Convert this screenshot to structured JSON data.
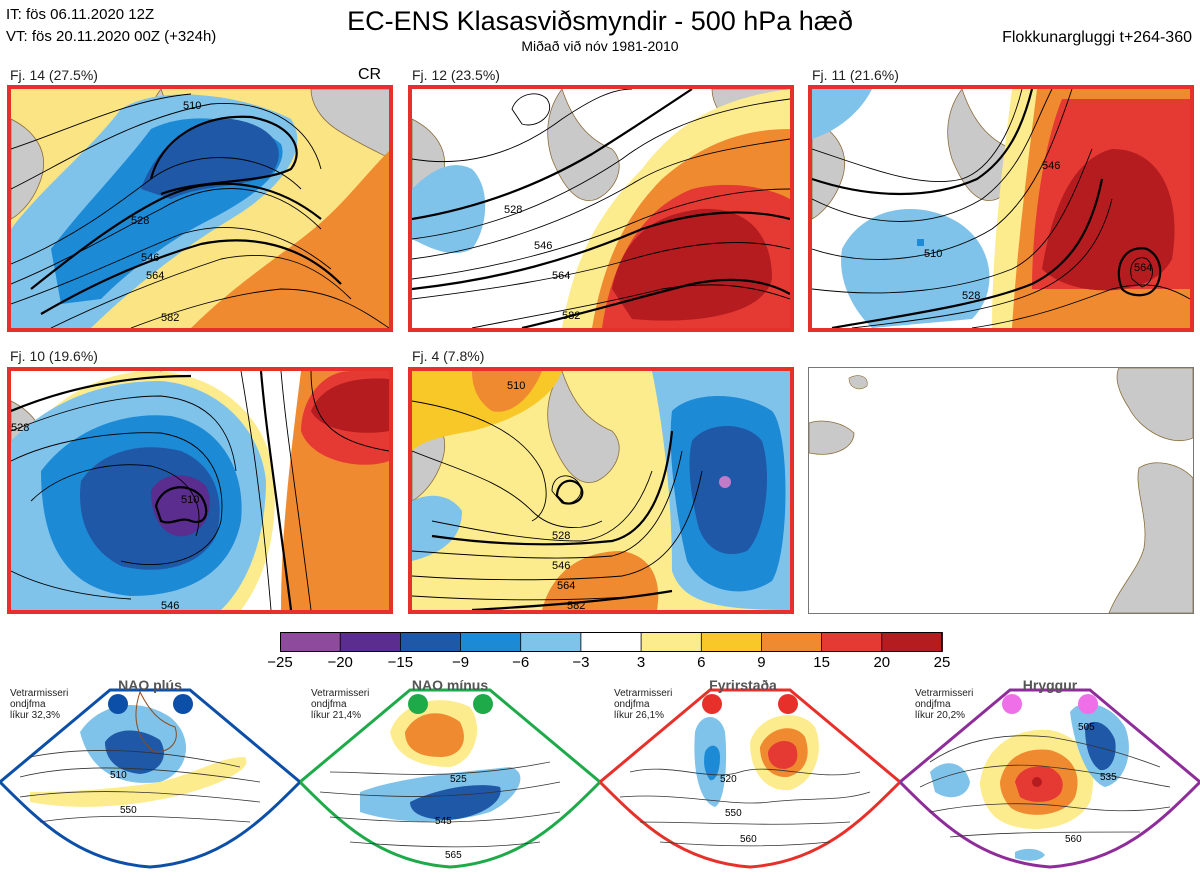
{
  "header": {
    "it_line": "IT: fös 06.11.2020 12Z",
    "vt_line": "VT: fös 20.11.2020 00Z  (+324h)",
    "title": "EC-ENS Klasasviðsmyndir - 500 hPa hæð",
    "subtitle": "Miðað við nóv 1981-2010",
    "window": "Flokkunargluggi t+264-360"
  },
  "clusters": [
    {
      "label": "Fj. 14 (27.5%)",
      "tag": "CR",
      "highlighted": true,
      "contour_labels": [
        "510",
        "528",
        "546",
        "564",
        "582"
      ]
    },
    {
      "label": "Fj. 12 (23.5%)",
      "tag": "",
      "highlighted": true,
      "contour_labels": [
        "528",
        "546",
        "564",
        "582"
      ]
    },
    {
      "label": "Fj. 11 (21.6%)",
      "tag": "",
      "highlighted": true,
      "contour_labels": [
        "510",
        "528",
        "546",
        "564"
      ]
    },
    {
      "label": "Fj. 10 (19.6%)",
      "tag": "",
      "highlighted": true,
      "contour_labels": [
        "510",
        "528",
        "546"
      ]
    },
    {
      "label": "Fj. 4 (7.8%)",
      "tag": "",
      "highlighted": true,
      "contour_labels": [
        "510",
        "528",
        "546",
        "564",
        "582"
      ]
    },
    {
      "label": "",
      "tag": "",
      "highlighted": false,
      "contour_labels": []
    }
  ],
  "colorbar": {
    "ticks": [
      "−25",
      "−20",
      "−15",
      "−9",
      "−6",
      "−3",
      "3",
      "6",
      "9",
      "15",
      "20",
      "25"
    ],
    "colors": [
      "#8e4a9c",
      "#5a2d8f",
      "#1f58a6",
      "#1d8ad6",
      "#7fc3ea",
      "#ffffff",
      "#fcec8e",
      "#f7c828",
      "#f08a30",
      "#e53a33",
      "#b51c20"
    ]
  },
  "regimes": [
    {
      "name": "NAO plús",
      "note_lines": [
        "Vetrarmisseri",
        "ondjfma",
        "líkur 32,3%"
      ],
      "dot_color": "#0b4fa8",
      "frame_color": "#0b4fa8",
      "contour_labels": [
        "510",
        "550"
      ]
    },
    {
      "name": "NAO mínus",
      "note_lines": [
        "Vetrarmisseri",
        "ondjfma",
        "líkur 21,4%"
      ],
      "dot_color": "#1faa4a",
      "frame_color": "#1faa4a",
      "contour_labels": [
        "525",
        "545",
        "565"
      ]
    },
    {
      "name": "Fyrirstaða",
      "note_lines": [
        "Vetrarmisseri",
        "ondjfma",
        "líkur 26,1%"
      ],
      "dot_color": "#e8302a",
      "frame_color": "#e8302a",
      "contour_labels": [
        "520",
        "550",
        "560"
      ]
    },
    {
      "name": "Hryggur",
      "note_lines": [
        "Vetrarmisseri",
        "ondjfma",
        "líkur 20,2%"
      ],
      "dot_color": "#ee6fe8",
      "frame_color": "#8e2d99",
      "contour_labels": [
        "505",
        "535",
        "560"
      ]
    }
  ]
}
